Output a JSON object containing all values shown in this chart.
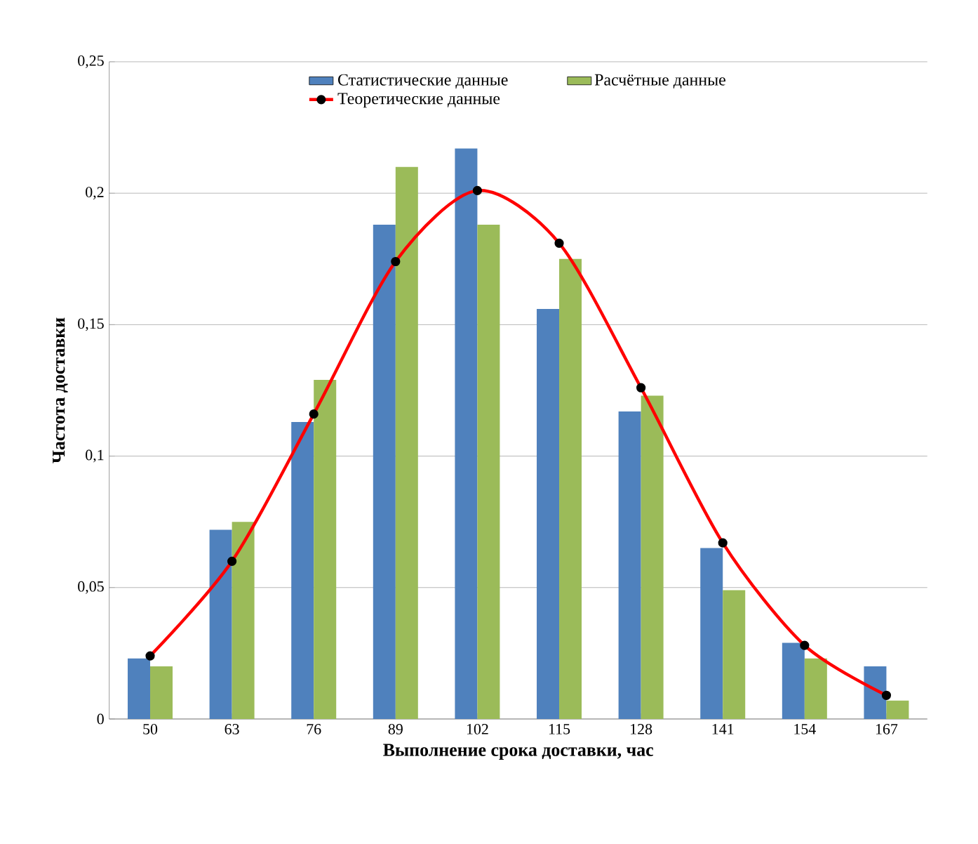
{
  "chart_data": {
    "type": "bar",
    "xlabel": "Выполнение срока доставки, час",
    "ylabel": "Частота доставки",
    "categories": [
      "50",
      "63",
      "76",
      "89",
      "102",
      "115",
      "128",
      "141",
      "154",
      "167"
    ],
    "series": [
      {
        "name": "Статистические данные",
        "color": "#4f81bd",
        "values": [
          0.023,
          0.072,
          0.113,
          0.188,
          0.217,
          0.156,
          0.117,
          0.065,
          0.029,
          0.02
        ]
      },
      {
        "name": "Расчётные данные",
        "color": "#9bbb59",
        "values": [
          0.02,
          0.075,
          0.129,
          0.21,
          0.188,
          0.175,
          0.123,
          0.049,
          0.023,
          0.007
        ]
      },
      {
        "name": "Теоретические данные",
        "type": "line",
        "color": "#ff0000",
        "marker": "circle",
        "values": [
          0.024,
          0.06,
          0.116,
          0.174,
          0.201,
          0.181,
          0.126,
          0.067,
          0.028,
          0.009
        ]
      }
    ],
    "ylim": [
      0,
      0.25
    ],
    "yticks": [
      0,
      {
        "value": 0.05,
        "label": "0,05"
      },
      {
        "value": 0.1,
        "label": "0,1"
      },
      {
        "value": 0.15,
        "label": "0,15"
      },
      {
        "value": 0.2,
        "label": "0,2"
      },
      {
        "value": 0.25,
        "label": "0,25"
      }
    ],
    "grid": "y",
    "legend": "top"
  }
}
